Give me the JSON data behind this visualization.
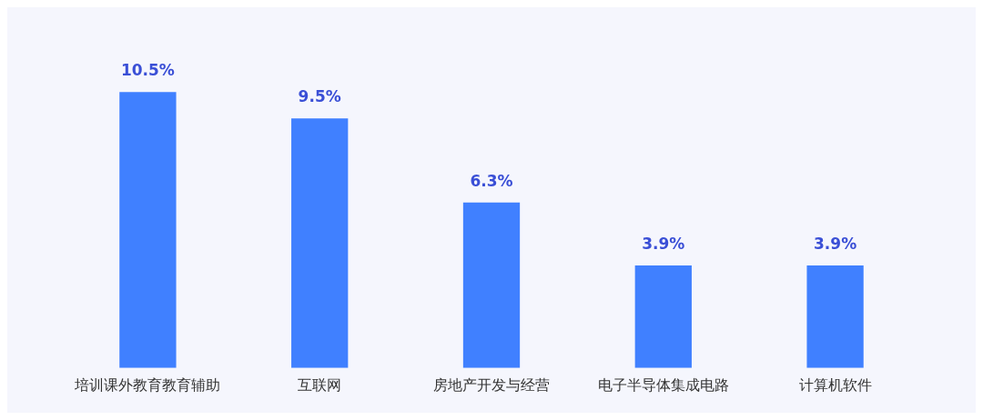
{
  "chart_data": {
    "type": "bar",
    "categories": [
      "培训课外教育教育辅助",
      "互联网",
      "房地产开发与经营",
      "电子半导体集成电路",
      "计算机软件"
    ],
    "values": [
      10.5,
      9.5,
      6.3,
      3.9,
      3.9
    ],
    "value_labels": [
      "10.5%",
      "9.5%",
      "6.3%",
      "3.9%",
      "3.9%"
    ],
    "color": "#4080ff",
    "grid": false,
    "legend": false
  }
}
